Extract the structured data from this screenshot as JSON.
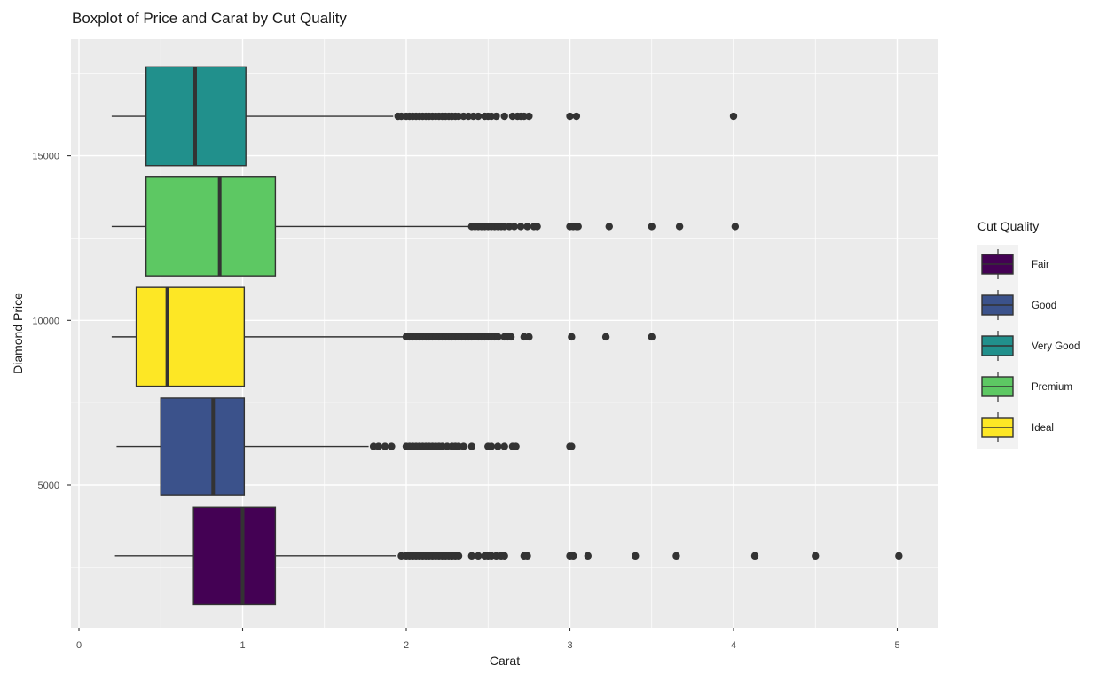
{
  "chart_data": {
    "type": "boxplot",
    "title": "Boxplot of Price and Carat by Cut Quality",
    "xlabel": "Carat",
    "ylabel": "Diamond Price",
    "xlim": [
      0,
      5
    ],
    "ylim": [
      0,
      18000
    ],
    "x_ticks": [
      0,
      1,
      2,
      3,
      4,
      5
    ],
    "y_ticks": [
      5000,
      10000,
      15000
    ],
    "grid": true,
    "legend": {
      "title": "Cut Quality",
      "placement": "right",
      "entries": [
        {
          "name": "Fair",
          "color": "#440154"
        },
        {
          "name": "Good",
          "color": "#3b528b"
        },
        {
          "name": "Very Good",
          "color": "#21908c"
        },
        {
          "name": "Premium",
          "color": "#5dc863"
        },
        {
          "name": "Ideal",
          "color": "#fde725"
        }
      ]
    },
    "series": [
      {
        "name": "Very Good",
        "color": "#21908c",
        "y_center": 16200,
        "y_half_height": 1500,
        "min": 0.2,
        "q1": 0.41,
        "median": 0.71,
        "q3": 1.02,
        "max": 1.92,
        "outliers": [
          1.95,
          1.97,
          2.0,
          2.02,
          2.04,
          2.06,
          2.08,
          2.1,
          2.12,
          2.14,
          2.16,
          2.18,
          2.2,
          2.22,
          2.24,
          2.26,
          2.28,
          2.3,
          2.32,
          2.35,
          2.38,
          2.41,
          2.44,
          2.48,
          2.5,
          2.52,
          2.55,
          2.6,
          2.65,
          2.68,
          2.7,
          2.72,
          2.75,
          3.0,
          3.04,
          4.0
        ]
      },
      {
        "name": "Premium",
        "color": "#5dc863",
        "y_center": 12850,
        "y_half_height": 1500,
        "min": 0.2,
        "q1": 0.41,
        "median": 0.86,
        "q3": 1.2,
        "max": 2.38,
        "outliers": [
          2.4,
          2.42,
          2.44,
          2.46,
          2.48,
          2.5,
          2.52,
          2.54,
          2.56,
          2.58,
          2.6,
          2.63,
          2.66,
          2.7,
          2.74,
          2.78,
          2.8,
          3.0,
          3.02,
          3.04,
          3.05,
          3.24,
          3.5,
          3.67,
          4.01
        ]
      },
      {
        "name": "Ideal",
        "color": "#fde725",
        "y_center": 9500,
        "y_half_height": 1500,
        "min": 0.2,
        "q1": 0.35,
        "median": 0.54,
        "q3": 1.01,
        "max": 1.98,
        "outliers": [
          2.0,
          2.02,
          2.04,
          2.06,
          2.08,
          2.1,
          2.12,
          2.14,
          2.16,
          2.18,
          2.2,
          2.22,
          2.24,
          2.26,
          2.28,
          2.3,
          2.32,
          2.34,
          2.36,
          2.38,
          2.4,
          2.42,
          2.44,
          2.46,
          2.48,
          2.5,
          2.52,
          2.54,
          2.56,
          2.6,
          2.62,
          2.64,
          2.72,
          2.75,
          3.01,
          3.22,
          3.5
        ]
      },
      {
        "name": "Good",
        "color": "#3b528b",
        "y_center": 6170,
        "y_half_height": 1470,
        "min": 0.23,
        "q1": 0.5,
        "median": 0.82,
        "q3": 1.01,
        "max": 1.77,
        "outliers": [
          1.8,
          1.83,
          1.87,
          1.91,
          2.0,
          2.02,
          2.04,
          2.06,
          2.08,
          2.1,
          2.12,
          2.14,
          2.16,
          2.18,
          2.2,
          2.22,
          2.25,
          2.28,
          2.3,
          2.32,
          2.35,
          2.4,
          2.5,
          2.52,
          2.56,
          2.6,
          2.65,
          2.67,
          3.0,
          3.01
        ]
      },
      {
        "name": "Fair",
        "color": "#440154",
        "y_center": 2850,
        "y_half_height": 1470,
        "min": 0.22,
        "q1": 0.7,
        "median": 1.0,
        "q3": 1.2,
        "max": 1.94,
        "outliers": [
          1.97,
          2.0,
          2.02,
          2.04,
          2.06,
          2.08,
          2.1,
          2.12,
          2.14,
          2.16,
          2.18,
          2.2,
          2.22,
          2.24,
          2.26,
          2.28,
          2.3,
          2.32,
          2.4,
          2.44,
          2.48,
          2.5,
          2.52,
          2.55,
          2.58,
          2.6,
          2.72,
          2.74,
          3.0,
          3.02,
          3.11,
          3.4,
          3.65,
          4.13,
          4.5,
          5.01
        ]
      }
    ]
  }
}
